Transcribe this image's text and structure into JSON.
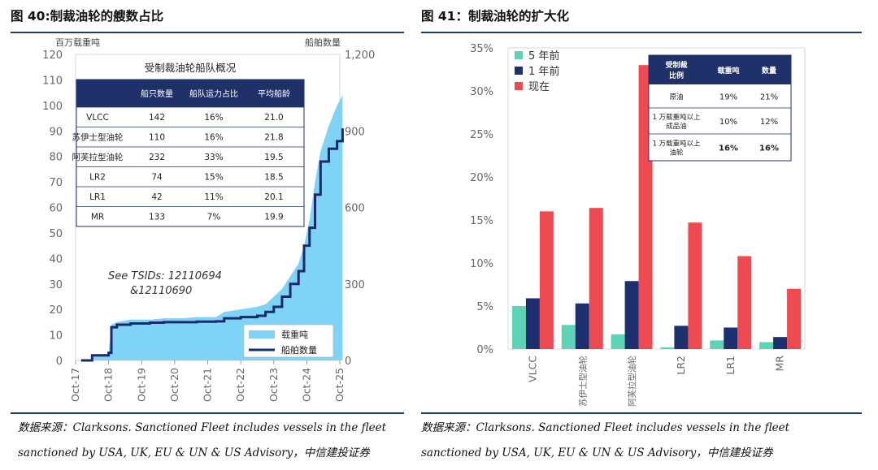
{
  "fig40": {
    "title": "图 40:制裁油轮的艘数占比",
    "left_axis_label": "百万载重吨",
    "right_axis_label": "船舶数量",
    "table_title": "受制裁油轮船队概况",
    "table_headers": [
      "",
      "船只数量",
      "船队运力占比",
      "平均船龄"
    ],
    "table_rows": [
      [
        "VLCC",
        "142",
        "16%",
        "21.0"
      ],
      [
        "苏伊士型油轮",
        "110",
        "16%",
        "21.8"
      ],
      [
        "阿芙拉型油轮",
        "232",
        "33%",
        "19.5"
      ],
      [
        "LR2",
        "74",
        "15%",
        "18.5"
      ],
      [
        "LR1",
        "42",
        "11%",
        "20.1"
      ],
      [
        "MR",
        "133",
        "7%",
        "19.9"
      ]
    ],
    "note_line1": "See TSIDs: 12110694",
    "note_line2": "&12110690",
    "legend_area": "载重吨",
    "legend_line": "船舶数量",
    "source_line1": "数据来源：Clarksons. Sanctioned Fleet includes vessels in the fleet",
    "source_line2": "sanctioned by USA, UK, EU & UN & US Advisory，中信建投证券"
  },
  "fig41": {
    "title": "图 41：制裁油轮的扩大化",
    "table_headers": [
      "受制裁\n比例",
      "载重吨",
      "数量"
    ],
    "table_rows": [
      [
        "原油",
        "19%",
        "21%"
      ],
      [
        "1 万载重吨以上\n成品油",
        "10%",
        "12%"
      ],
      [
        "1 万载重吨以上\n油轮",
        "16%",
        "16%"
      ]
    ],
    "source_line1": "数据来源：Clarksons. Sanctioned Fleet includes vessels in the fleet",
    "source_line2": "sanctioned by USA, UK, EU & UN & US Advisory，中信建投证券"
  },
  "chart_data": [
    {
      "type": "area",
      "x_ticks": [
        "Oct-17",
        "Oct-18",
        "Oct-19",
        "Oct-20",
        "Oct-21",
        "Oct-22",
        "Oct-23",
        "Oct-24",
        "Oct-25"
      ],
      "left_ylim": [
        0,
        120
      ],
      "left_yticks": [
        "0",
        "10",
        "20",
        "30",
        "40",
        "50",
        "60",
        "70",
        "80",
        "90",
        "100",
        "110",
        "120"
      ],
      "right_ylim": [
        0,
        1200
      ],
      "right_yticks": [
        "0",
        "300",
        "600",
        "900",
        "1,200"
      ],
      "colors": {
        "area": "#7fd3f5",
        "line": "#1a2a6c"
      },
      "series": [
        {
          "name": "载重吨",
          "axis": "left",
          "points": [
            [
              "2017-12",
              0
            ],
            [
              "2018-03",
              0
            ],
            [
              "2018-05",
              2
            ],
            [
              "2018-10",
              2.5
            ],
            [
              "2018-11",
              14
            ],
            [
              "2019-01",
              15
            ],
            [
              "2019-06",
              16
            ],
            [
              "2020-01",
              16
            ],
            [
              "2020-06",
              16.5
            ],
            [
              "2021-01",
              16.5
            ],
            [
              "2021-06",
              17
            ],
            [
              "2022-01",
              17
            ],
            [
              "2022-04",
              19
            ],
            [
              "2022-10",
              20
            ],
            [
              "2023-04",
              21
            ],
            [
              "2023-07",
              22
            ],
            [
              "2023-10",
              25
            ],
            [
              "2024-01",
              28
            ],
            [
              "2024-04",
              33
            ],
            [
              "2024-07",
              38
            ],
            [
              "2024-09",
              45
            ],
            [
              "2024-11",
              55
            ],
            [
              "2025-01",
              70
            ],
            [
              "2025-03",
              82
            ],
            [
              "2025-06",
              92
            ],
            [
              "2025-09",
              100
            ],
            [
              "2025-11",
              104
            ]
          ]
        },
        {
          "name": "船舶数量",
          "axis": "right",
          "points": [
            [
              "2017-12",
              0
            ],
            [
              "2018-03",
              0
            ],
            [
              "2018-04",
              20
            ],
            [
              "2018-10",
              30
            ],
            [
              "2018-11",
              130
            ],
            [
              "2019-01",
              140
            ],
            [
              "2019-06",
              145
            ],
            [
              "2020-01",
              148
            ],
            [
              "2020-06",
              150
            ],
            [
              "2021-01",
              150
            ],
            [
              "2021-06",
              152
            ],
            [
              "2022-01",
              153
            ],
            [
              "2022-04",
              165
            ],
            [
              "2022-10",
              170
            ],
            [
              "2023-04",
              175
            ],
            [
              "2023-07",
              190
            ],
            [
              "2023-10",
              210
            ],
            [
              "2024-01",
              250
            ],
            [
              "2024-04",
              300
            ],
            [
              "2024-07",
              350
            ],
            [
              "2024-09",
              450
            ],
            [
              "2024-11",
              520
            ],
            [
              "2025-01",
              650
            ],
            [
              "2025-03",
              780
            ],
            [
              "2025-06",
              830
            ],
            [
              "2025-09",
              860
            ],
            [
              "2025-11",
              910
            ]
          ]
        }
      ]
    },
    {
      "type": "bar",
      "categories": [
        "VLCC",
        "苏伊士型油轮",
        "阿芙拉型油轮",
        "LR2",
        "LR1",
        "MR"
      ],
      "ylim": [
        0,
        35
      ],
      "yticks": [
        "0%",
        "5%",
        "10%",
        "15%",
        "20%",
        "25%",
        "30%",
        "35%"
      ],
      "series": [
        {
          "name": "5 年前",
          "color": "#5fd3b5",
          "values": [
            5.0,
            2.8,
            1.7,
            0.2,
            1.0,
            0.8
          ]
        },
        {
          "name": "1 年前",
          "color": "#1d2f6f",
          "values": [
            5.9,
            5.3,
            7.9,
            2.7,
            2.5,
            1.4
          ]
        },
        {
          "name": "现在",
          "color": "#ee4a52",
          "values": [
            16.0,
            16.4,
            33.0,
            14.7,
            10.8,
            7.0
          ]
        }
      ]
    }
  ]
}
